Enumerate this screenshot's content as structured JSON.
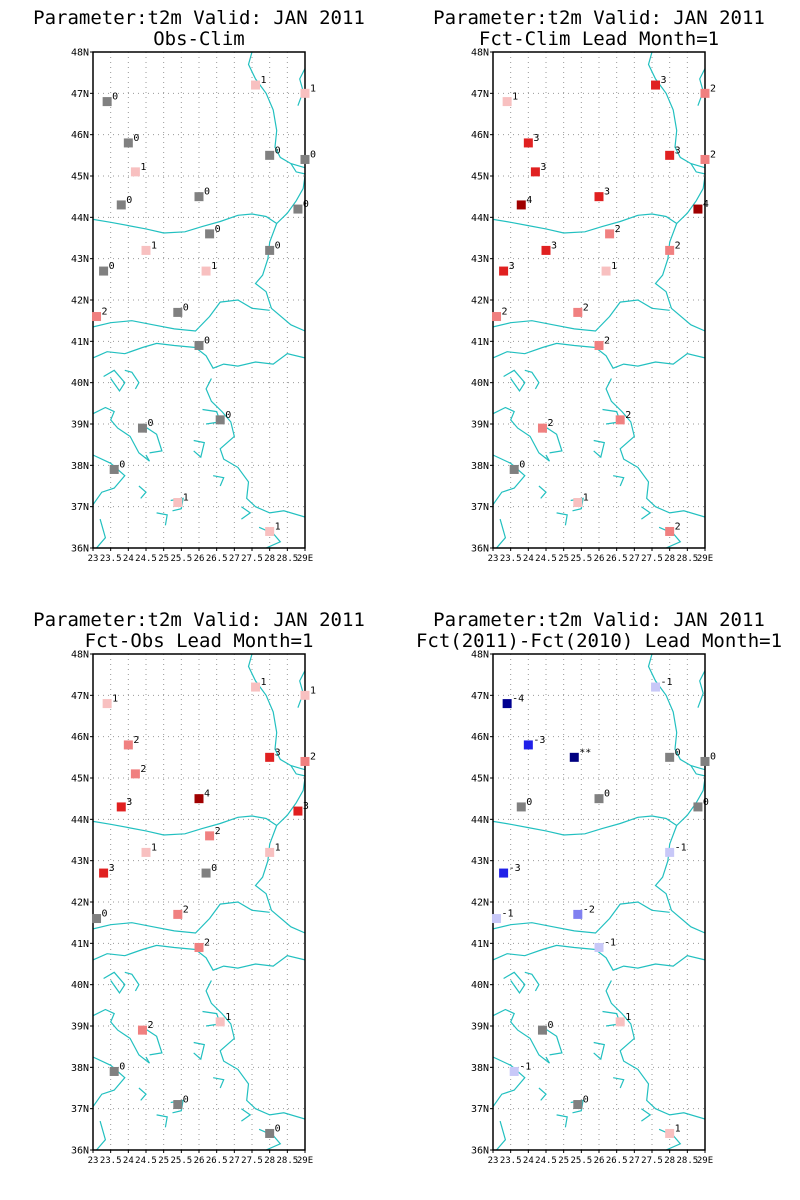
{
  "chart_data": [
    {
      "type": "scatter",
      "title": "Parameter:t2m Valid: JAN 2011",
      "subtitle": "Obs-Clim",
      "xlabel": "",
      "ylabel": "",
      "xlim": [
        23,
        29
      ],
      "ylim": [
        36,
        48
      ],
      "grid": true,
      "x_ticks": [
        "23",
        "23.5",
        "24",
        "24.5",
        "25",
        "25.5",
        "26",
        "26.5",
        "27",
        "27.5",
        "28",
        "28.5",
        "29E"
      ],
      "y_ticks": [
        "36N",
        "37N",
        "38N",
        "39N",
        "40N",
        "41N",
        "42N",
        "43N",
        "44N",
        "45N",
        "46N",
        "47N",
        "48N"
      ],
      "points": [
        {
          "lon": 23.4,
          "lat": 46.8,
          "label": "0"
        },
        {
          "lon": 27.6,
          "lat": 47.2,
          "label": "1"
        },
        {
          "lon": 29.0,
          "lat": 47.0,
          "label": "1"
        },
        {
          "lon": 24.0,
          "lat": 45.8,
          "label": "0"
        },
        {
          "lon": 28.0,
          "lat": 45.5,
          "label": "0"
        },
        {
          "lon": 29.0,
          "lat": 45.4,
          "label": "0"
        },
        {
          "lon": 24.2,
          "lat": 45.1,
          "label": "1"
        },
        {
          "lon": 23.8,
          "lat": 44.3,
          "label": "0"
        },
        {
          "lon": 26.0,
          "lat": 44.5,
          "label": "0"
        },
        {
          "lon": 28.8,
          "lat": 44.2,
          "label": "0"
        },
        {
          "lon": 26.3,
          "lat": 43.6,
          "label": "0"
        },
        {
          "lon": 24.5,
          "lat": 43.2,
          "label": "1"
        },
        {
          "lon": 28.0,
          "lat": 43.2,
          "label": "0"
        },
        {
          "lon": 23.3,
          "lat": 42.7,
          "label": "0"
        },
        {
          "lon": 26.2,
          "lat": 42.7,
          "label": "1"
        },
        {
          "lon": 23.1,
          "lat": 41.6,
          "label": "2"
        },
        {
          "lon": 25.4,
          "lat": 41.7,
          "label": "0"
        },
        {
          "lon": 26.0,
          "lat": 40.9,
          "label": "0"
        },
        {
          "lon": 24.4,
          "lat": 38.9,
          "label": "0"
        },
        {
          "lon": 26.6,
          "lat": 39.1,
          "label": "0"
        },
        {
          "lon": 23.6,
          "lat": 37.9,
          "label": "0"
        },
        {
          "lon": 25.4,
          "lat": 37.1,
          "label": "1"
        },
        {
          "lon": 28.0,
          "lat": 36.4,
          "label": "1"
        }
      ]
    },
    {
      "type": "scatter",
      "title": "Parameter:t2m Valid: JAN 2011",
      "subtitle": "Fct-Clim Lead Month=1",
      "xlabel": "",
      "ylabel": "",
      "xlim": [
        23,
        29
      ],
      "ylim": [
        36,
        48
      ],
      "grid": true,
      "x_ticks": [
        "23",
        "23.5",
        "24",
        "24.5",
        "25",
        "25.5",
        "26",
        "26.5",
        "27",
        "27.5",
        "28",
        "28.5",
        "29E"
      ],
      "y_ticks": [
        "36N",
        "37N",
        "38N",
        "39N",
        "40N",
        "41N",
        "42N",
        "43N",
        "44N",
        "45N",
        "46N",
        "47N",
        "48N"
      ],
      "points": [
        {
          "lon": 23.4,
          "lat": 46.8,
          "label": "1"
        },
        {
          "lon": 27.6,
          "lat": 47.2,
          "label": "3"
        },
        {
          "lon": 29.0,
          "lat": 47.0,
          "label": "2"
        },
        {
          "lon": 24.0,
          "lat": 45.8,
          "label": "3"
        },
        {
          "lon": 28.0,
          "lat": 45.5,
          "label": "3"
        },
        {
          "lon": 29.0,
          "lat": 45.4,
          "label": "2"
        },
        {
          "lon": 24.2,
          "lat": 45.1,
          "label": "3"
        },
        {
          "lon": 23.8,
          "lat": 44.3,
          "label": "4"
        },
        {
          "lon": 26.0,
          "lat": 44.5,
          "label": "3"
        },
        {
          "lon": 28.8,
          "lat": 44.2,
          "label": "4"
        },
        {
          "lon": 26.3,
          "lat": 43.6,
          "label": "2"
        },
        {
          "lon": 24.5,
          "lat": 43.2,
          "label": "3"
        },
        {
          "lon": 28.0,
          "lat": 43.2,
          "label": "2"
        },
        {
          "lon": 23.3,
          "lat": 42.7,
          "label": "3"
        },
        {
          "lon": 26.2,
          "lat": 42.7,
          "label": "1"
        },
        {
          "lon": 23.1,
          "lat": 41.6,
          "label": "2"
        },
        {
          "lon": 25.4,
          "lat": 41.7,
          "label": "2"
        },
        {
          "lon": 26.0,
          "lat": 40.9,
          "label": "2"
        },
        {
          "lon": 24.4,
          "lat": 38.9,
          "label": "2"
        },
        {
          "lon": 26.6,
          "lat": 39.1,
          "label": "2"
        },
        {
          "lon": 23.6,
          "lat": 37.9,
          "label": "0"
        },
        {
          "lon": 25.4,
          "lat": 37.1,
          "label": "1"
        },
        {
          "lon": 28.0,
          "lat": 36.4,
          "label": "2"
        }
      ]
    },
    {
      "type": "scatter",
      "title": "Parameter:t2m Valid: JAN 2011",
      "subtitle": "Fct-Obs Lead Month=1",
      "xlabel": "",
      "ylabel": "",
      "xlim": [
        23,
        29
      ],
      "ylim": [
        36,
        48
      ],
      "grid": true,
      "x_ticks": [
        "23",
        "23.5",
        "24",
        "24.5",
        "25",
        "25.5",
        "26",
        "26.5",
        "27",
        "27.5",
        "28",
        "28.5",
        "29E"
      ],
      "y_ticks": [
        "36N",
        "37N",
        "38N",
        "39N",
        "40N",
        "41N",
        "42N",
        "43N",
        "44N",
        "45N",
        "46N",
        "47N",
        "48N"
      ],
      "points": [
        {
          "lon": 23.4,
          "lat": 46.8,
          "label": "1"
        },
        {
          "lon": 27.6,
          "lat": 47.2,
          "label": "1"
        },
        {
          "lon": 29.0,
          "lat": 47.0,
          "label": "1"
        },
        {
          "lon": 24.0,
          "lat": 45.8,
          "label": "2"
        },
        {
          "lon": 28.0,
          "lat": 45.5,
          "label": "3"
        },
        {
          "lon": 29.0,
          "lat": 45.4,
          "label": "2"
        },
        {
          "lon": 24.2,
          "lat": 45.1,
          "label": "2"
        },
        {
          "lon": 23.8,
          "lat": 44.3,
          "label": "3"
        },
        {
          "lon": 26.0,
          "lat": 44.5,
          "label": "4"
        },
        {
          "lon": 28.8,
          "lat": 44.2,
          "label": "3"
        },
        {
          "lon": 26.3,
          "lat": 43.6,
          "label": "2"
        },
        {
          "lon": 24.5,
          "lat": 43.2,
          "label": "1"
        },
        {
          "lon": 28.0,
          "lat": 43.2,
          "label": "1"
        },
        {
          "lon": 23.3,
          "lat": 42.7,
          "label": "3"
        },
        {
          "lon": 26.2,
          "lat": 42.7,
          "label": "0"
        },
        {
          "lon": 23.1,
          "lat": 41.6,
          "label": "0"
        },
        {
          "lon": 25.4,
          "lat": 41.7,
          "label": "2"
        },
        {
          "lon": 26.0,
          "lat": 40.9,
          "label": "2"
        },
        {
          "lon": 24.4,
          "lat": 38.9,
          "label": "2"
        },
        {
          "lon": 26.6,
          "lat": 39.1,
          "label": "1"
        },
        {
          "lon": 23.6,
          "lat": 37.9,
          "label": "0"
        },
        {
          "lon": 25.4,
          "lat": 37.1,
          "label": "0"
        },
        {
          "lon": 28.0,
          "lat": 36.4,
          "label": "0"
        }
      ]
    },
    {
      "type": "scatter",
      "title": "Parameter:t2m Valid: JAN 2011",
      "subtitle": "Fct(2011)-Fct(2010) Lead Month=1",
      "xlabel": "",
      "ylabel": "",
      "xlim": [
        23,
        29
      ],
      "ylim": [
        36,
        48
      ],
      "grid": true,
      "x_ticks": [
        "23",
        "23.5",
        "24",
        "24.5",
        "25",
        "25.5",
        "26",
        "26.5",
        "27",
        "27.5",
        "28",
        "28.5",
        "29E"
      ],
      "y_ticks": [
        "36N",
        "37N",
        "38N",
        "39N",
        "40N",
        "41N",
        "42N",
        "43N",
        "44N",
        "45N",
        "46N",
        "47N",
        "48N"
      ],
      "points": [
        {
          "lon": 23.4,
          "lat": 46.8,
          "label": "-4"
        },
        {
          "lon": 27.6,
          "lat": 47.2,
          "label": "-1"
        },
        {
          "lon": 24.0,
          "lat": 45.8,
          "label": "-3"
        },
        {
          "lon": 25.3,
          "lat": 45.5,
          "label": "**"
        },
        {
          "lon": 28.0,
          "lat": 45.5,
          "label": "0"
        },
        {
          "lon": 29.0,
          "lat": 45.4,
          "label": "0"
        },
        {
          "lon": 23.8,
          "lat": 44.3,
          "label": "0"
        },
        {
          "lon": 26.0,
          "lat": 44.5,
          "label": "0"
        },
        {
          "lon": 28.8,
          "lat": 44.3,
          "label": "0"
        },
        {
          "lon": 28.0,
          "lat": 43.2,
          "label": "-1"
        },
        {
          "lon": 23.3,
          "lat": 42.7,
          "label": "-3"
        },
        {
          "lon": 23.1,
          "lat": 41.6,
          "label": "-1"
        },
        {
          "lon": 25.4,
          "lat": 41.7,
          "label": "-2"
        },
        {
          "lon": 26.0,
          "lat": 40.9,
          "label": "-1"
        },
        {
          "lon": 24.4,
          "lat": 38.9,
          "label": "0"
        },
        {
          "lon": 26.6,
          "lat": 39.1,
          "label": "1"
        },
        {
          "lon": 23.6,
          "lat": 37.9,
          "label": "-1"
        },
        {
          "lon": 25.4,
          "lat": 37.1,
          "label": "0"
        },
        {
          "lon": 28.0,
          "lat": 36.4,
          "label": "1"
        }
      ]
    }
  ],
  "colors": {
    "coastline": "#22c0c0",
    "grid": "#999999",
    "neutral": "#808080",
    "pos1": "#f8c0c0",
    "pos2": "#f08080",
    "pos3": "#e02020",
    "pos4": "#a00000",
    "neg1": "#c8c8f8",
    "neg2": "#8080f0",
    "neg3": "#2020e8",
    "neg4": "#000090",
    "missing": "#000080"
  }
}
